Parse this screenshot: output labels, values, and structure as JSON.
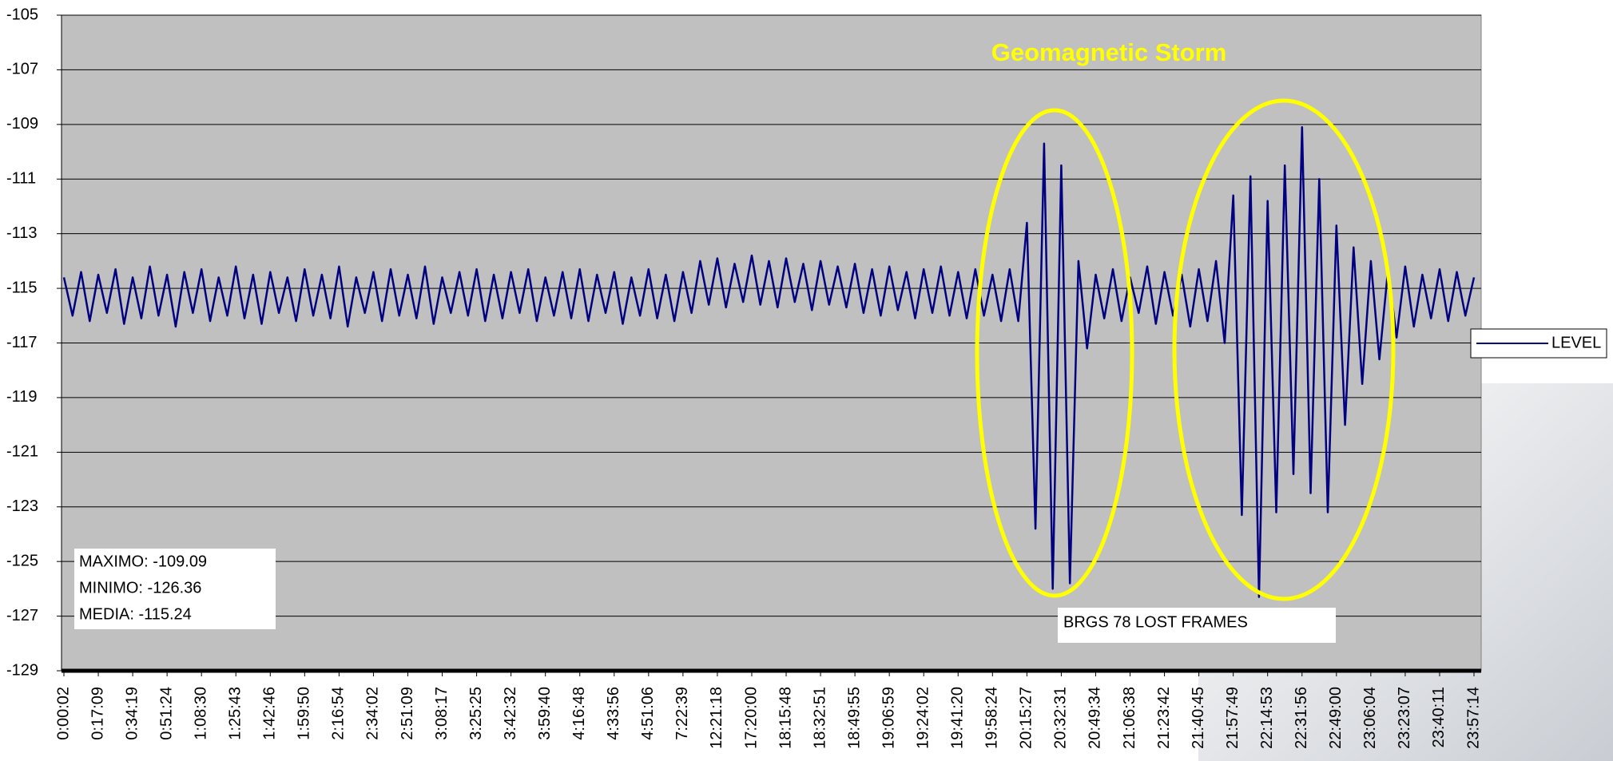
{
  "chart_data": {
    "type": "line",
    "title": "Geomagnetic Storm",
    "annotations": [
      "MAXIMO: -109.09",
      "MINIMO: -126.36",
      "MEDIA: -115.24",
      "BRGS 78 LOST FRAMES"
    ],
    "categories": [
      "0:00:02",
      null,
      null,
      null,
      "0:17:09",
      null,
      null,
      null,
      "0:34:19",
      null,
      null,
      null,
      "0:51:24",
      null,
      null,
      null,
      "1:08:30",
      null,
      null,
      null,
      "1:25:43",
      null,
      null,
      null,
      "1:42:46",
      null,
      null,
      null,
      "1:59:50",
      null,
      null,
      null,
      "2:16:54",
      null,
      null,
      null,
      "2:34:02",
      null,
      null,
      null,
      "2:51:09",
      null,
      null,
      null,
      "3:08:17",
      null,
      null,
      null,
      "3:25:25",
      null,
      null,
      null,
      "3:42:32",
      null,
      null,
      null,
      "3:59:40",
      null,
      null,
      null,
      "4:16:48",
      null,
      null,
      null,
      "4:33:56",
      null,
      null,
      null,
      "4:51:06",
      null,
      null,
      null,
      "7:22:39",
      null,
      null,
      null,
      "12:21:18",
      null,
      null,
      null,
      "17:20:00",
      null,
      null,
      null,
      "18:15:48",
      null,
      null,
      null,
      "18:32:51",
      null,
      null,
      null,
      "18:49:55",
      null,
      null,
      null,
      "19:06:59",
      null,
      null,
      null,
      "19:24:02",
      null,
      null,
      null,
      "19:41:20",
      null,
      null,
      null,
      "19:58:24",
      null,
      null,
      null,
      "20:15:27",
      null,
      null,
      null,
      "20:32:31",
      null,
      null,
      null,
      "20:49:34",
      null,
      null,
      null,
      "21:06:38",
      null,
      null,
      null,
      "21:23:42",
      null,
      null,
      null,
      "21:40:45",
      null,
      null,
      null,
      "21:57:49",
      null,
      null,
      null,
      "22:14:53",
      null,
      null,
      null,
      "22:31:56",
      null,
      null,
      null,
      "22:49:00",
      null,
      null,
      null,
      "23:06:04",
      null,
      null,
      null,
      "23:23:07",
      null,
      null,
      null,
      "23:40:11",
      null,
      null,
      null,
      "23:57:14"
    ],
    "series": [
      {
        "name": "LEVEL",
        "color": "#000080",
        "values": [
          -114.6,
          -116.0,
          -114.4,
          -116.2,
          -114.5,
          -115.9,
          -114.3,
          -116.3,
          -114.6,
          -116.1,
          -114.2,
          -116.0,
          -114.5,
          -116.4,
          -114.4,
          -115.9,
          -114.3,
          -116.2,
          -114.6,
          -116.0,
          -114.2,
          -116.1,
          -114.5,
          -116.3,
          -114.4,
          -115.9,
          -114.6,
          -116.2,
          -114.3,
          -116.0,
          -114.5,
          -116.1,
          -114.2,
          -116.4,
          -114.6,
          -115.9,
          -114.4,
          -116.2,
          -114.3,
          -116.0,
          -114.5,
          -116.1,
          -114.2,
          -116.3,
          -114.6,
          -115.9,
          -114.4,
          -116.0,
          -114.3,
          -116.2,
          -114.5,
          -116.1,
          -114.4,
          -115.9,
          -114.3,
          -116.2,
          -114.6,
          -116.0,
          -114.4,
          -116.1,
          -114.3,
          -116.2,
          -114.5,
          -115.9,
          -114.4,
          -116.3,
          -114.6,
          -116.0,
          -114.3,
          -116.1,
          -114.5,
          -116.2,
          -114.4,
          -115.9,
          -114.0,
          -115.6,
          -113.9,
          -115.7,
          -114.1,
          -115.5,
          -113.8,
          -115.6,
          -114.0,
          -115.7,
          -113.9,
          -115.5,
          -114.1,
          -115.8,
          -114.0,
          -115.6,
          -114.2,
          -115.7,
          -114.1,
          -115.9,
          -114.3,
          -116.0,
          -114.2,
          -115.8,
          -114.4,
          -116.1,
          -114.3,
          -115.9,
          -114.2,
          -116.0,
          -114.4,
          -116.1,
          -114.3,
          -116.0,
          -114.5,
          -116.2,
          -114.3,
          -116.2,
          -112.6,
          -123.8,
          -109.7,
          -126.0,
          -110.5,
          -125.8,
          -114.0,
          -117.2,
          -114.5,
          -116.1,
          -114.3,
          -116.2,
          -114.6,
          -115.9,
          -114.2,
          -116.3,
          -114.4,
          -116.0,
          -114.5,
          -116.4,
          -114.3,
          -116.2,
          -114.0,
          -117.0,
          -111.6,
          -123.3,
          -110.9,
          -126.3,
          -111.8,
          -123.2,
          -110.5,
          -121.8,
          -109.1,
          -122.5,
          -111.0,
          -123.2,
          -112.7,
          -120.0,
          -113.5,
          -118.5,
          -114.0,
          -117.6,
          -114.3,
          -116.8,
          -114.2,
          -116.4,
          -114.5,
          -116.1,
          -114.3,
          -116.2,
          -114.4,
          -116.0,
          -114.6
        ]
      }
    ],
    "ylim": [
      -129,
      -105
    ],
    "yticks": [
      -129,
      -127,
      -125,
      -123,
      -121,
      -119,
      -117,
      -115,
      -113,
      -111,
      -109,
      -107,
      -105
    ],
    "grid": true,
    "legend": "right"
  }
}
